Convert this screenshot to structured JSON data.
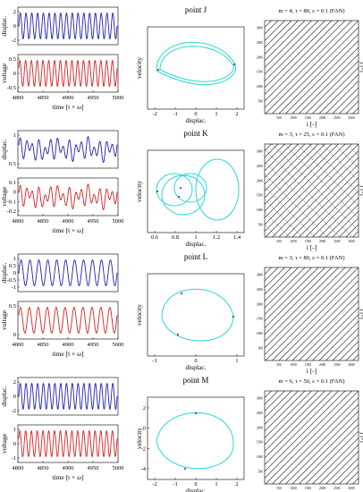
{
  "colors": {
    "displacement": "#1f1fb4",
    "voltage": "#d62020",
    "phase": "#2ad6d6",
    "recurrence": "#000000",
    "axis": "#000000"
  },
  "labels": {
    "displac": "displac.",
    "voltage": "voltage",
    "time": "time [t × ω]",
    "velocity": "velocity",
    "phase_x": "displac.",
    "rp_x": "i [-]",
    "rp_y": "j [-]"
  },
  "rows": [
    {
      "point_label": "point J",
      "rp_title": "m = 4, τ = 80, ε = 0.1 (FAN)",
      "time_ticks": [
        "4800",
        "4850",
        "4900",
        "4950",
        "5000"
      ],
      "disp_yticks": [
        "2",
        "0",
        "-2"
      ],
      "volt_yticks": [
        "0.5",
        "0",
        "-0.5"
      ],
      "phase_xticks": [
        "-2",
        "-1",
        "0",
        "1",
        "2"
      ],
      "rp_ticks": [
        "500",
        "1000",
        "1500",
        "2000",
        "2500",
        "3000"
      ],
      "rp_type": "diagonal_stripes"
    },
    {
      "point_label": "point K",
      "rp_title": "m = 3, τ = 25, ε = 0.1 (FAN)",
      "time_ticks": [
        "4800",
        "4850",
        "4900",
        "4950",
        "5000"
      ],
      "disp_yticks": [
        "1",
        "0.5"
      ],
      "volt_yticks": [
        "0.1",
        "0",
        "-0.1",
        "-0.2"
      ],
      "phase_xticks": [
        "0.6",
        "0.8",
        "1",
        "1.2",
        "1.4"
      ],
      "rp_ticks": [
        "500",
        "1000",
        "1500",
        "2000",
        "2500",
        "3000"
      ],
      "rp_type": "checkerboard"
    },
    {
      "point_label": "point L",
      "rp_title": "m = 3, τ = 80, ε = 0.1 (FAN)",
      "time_ticks": [
        "4800",
        "4850",
        "4900",
        "4950",
        "5000"
      ],
      "disp_yticks": [
        "1",
        "0.5",
        "0",
        "-0.5",
        "-1"
      ],
      "volt_yticks": [
        "0.5",
        "0"
      ],
      "phase_xticks": [
        "-1",
        "0",
        "1"
      ],
      "rp_ticks": [
        "500",
        "1000",
        "1500",
        "2000",
        "2500",
        "3000"
      ],
      "rp_type": "diagonal_stripes"
    },
    {
      "point_label": "point M",
      "rp_title": "m = 6, τ = 50, ε = 0.1 (FAN)",
      "time_ticks": [
        "4800",
        "4850",
        "4900",
        "4950",
        "5000"
      ],
      "disp_yticks": [
        "2",
        "0",
        "-2"
      ],
      "volt_yticks": [
        "1",
        "0",
        "-1"
      ],
      "phase_xticks": [
        "-2",
        "-1",
        "0",
        "1",
        "2"
      ],
      "phase_yticks": [
        "2",
        "0",
        "-2",
        "-4"
      ],
      "rp_ticks": [
        "500",
        "1000",
        "1500",
        "2000",
        "2500",
        "3000"
      ],
      "rp_type": "diagonal_stripes"
    }
  ],
  "chart_data": [
    {
      "type": "line",
      "panel": "point J time series",
      "xlabel": "time [t × ω]",
      "xlim": [
        4800,
        5000
      ],
      "series": [
        {
          "name": "displac.",
          "amplitude": 2.0,
          "offset": 0,
          "cycles": 17,
          "ylim": [
            -2.5,
            2.5
          ]
        },
        {
          "name": "voltage",
          "amplitude": 0.7,
          "offset": 0,
          "cycles": 17,
          "ylim": [
            -0.9,
            0.9
          ]
        }
      ]
    },
    {
      "type": "line",
      "panel": "point J phase portrait",
      "xlabel": "displac.",
      "ylabel": "velocity",
      "xlim": [
        -2.3,
        2.3
      ],
      "closed_curve": {
        "x_range": [
          -1.9,
          1.9
        ],
        "loops": 2
      }
    },
    {
      "type": "line",
      "panel": "point K time series",
      "xlabel": "time [t × ω]",
      "xlim": [
        4800,
        5000
      ],
      "series": [
        {
          "name": "displac.",
          "offset": 0.9,
          "amplitude": 0.3,
          "ylim": [
            0.4,
            1.3
          ]
        },
        {
          "name": "voltage",
          "offset": -0.05,
          "amplitude": 0.13,
          "ylim": [
            -0.25,
            0.15
          ]
        }
      ]
    },
    {
      "type": "line",
      "panel": "point K phase portrait",
      "xlabel": "displac.",
      "ylabel": "velocity",
      "xlim": [
        0.5,
        1.45
      ],
      "closed_curve": {
        "x_range": [
          0.55,
          1.35
        ],
        "loops": 4
      }
    },
    {
      "type": "line",
      "panel": "point L time series",
      "xlabel": "time [t × ω]",
      "xlim": [
        4800,
        5000
      ],
      "series": [
        {
          "name": "displac.",
          "amplitude": 1.1,
          "offset": 0,
          "cycles": 11,
          "ylim": [
            -1.3,
            1.3
          ]
        },
        {
          "name": "voltage",
          "amplitude": 0.35,
          "offset": 0.3,
          "cycles": 11,
          "ylim": [
            -0.1,
            0.75
          ]
        }
      ]
    },
    {
      "type": "line",
      "panel": "point L phase portrait",
      "xlabel": "displac.",
      "ylabel": "velocity",
      "xlim": [
        -1.6,
        1.7
      ],
      "closed_curve": {
        "x_range": [
          -1.2,
          1.3
        ],
        "loops": 1
      }
    },
    {
      "type": "line",
      "panel": "point M time series",
      "xlabel": "time [t × ω]",
      "xlim": [
        4800,
        5000
      ],
      "series": [
        {
          "name": "displac.",
          "amplitude": 2.0,
          "offset": 0,
          "cycles": 17,
          "ylim": [
            -2.6,
            2.6
          ]
        },
        {
          "name": "voltage",
          "amplitude": 1.0,
          "offset": 0,
          "cycles": 17,
          "ylim": [
            -1.3,
            1.3
          ]
        }
      ]
    },
    {
      "type": "line",
      "panel": "point M phase portrait",
      "xlabel": "displac.",
      "ylabel": "velocity",
      "xlim": [
        -2.4,
        2.4
      ],
      "ylim": [
        -4.3,
        3.5
      ],
      "closed_curve": {
        "x_range": [
          -1.9,
          1.9
        ],
        "y_range": [
          -3.7,
          3.0
        ],
        "loops": 1
      }
    }
  ]
}
